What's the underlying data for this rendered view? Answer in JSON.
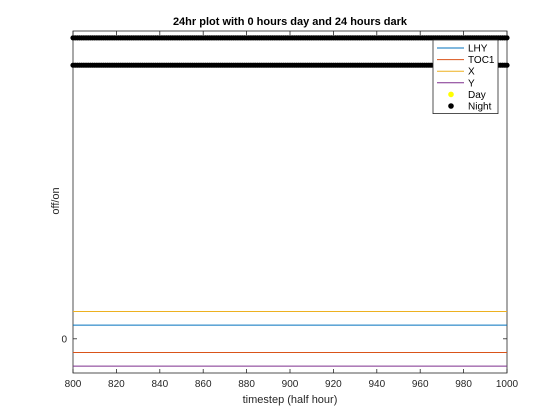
{
  "chart_data": {
    "type": "line",
    "title": "24hr plot with 0 hours day and 24 hours dark",
    "xlabel": "timestep (half hour)",
    "ylabel": "off/on",
    "xlim": [
      800,
      1000
    ],
    "ylim": [
      -0.25,
      2.25
    ],
    "x_ticks": [
      800,
      820,
      840,
      860,
      880,
      900,
      920,
      940,
      960,
      980,
      1000
    ],
    "y_ticks": [
      0
    ],
    "grid": false,
    "legend_position": "top-right",
    "series": [
      {
        "name": "LHY",
        "color": "#0072bd",
        "kind": "line",
        "x": [
          800,
          1000
        ],
        "y": [
          0.1,
          0.1
        ]
      },
      {
        "name": "TOC1",
        "color": "#d95319",
        "kind": "line",
        "x": [
          800,
          1000
        ],
        "y": [
          -0.1,
          -0.1
        ]
      },
      {
        "name": "X",
        "color": "#edb120",
        "kind": "line",
        "x": [
          800,
          1000
        ],
        "y": [
          0.2,
          0.2
        ]
      },
      {
        "name": "Y",
        "color": "#7e2f8e",
        "kind": "line",
        "x": [
          800,
          1000
        ],
        "y": [
          -0.2,
          -0.2
        ]
      },
      {
        "name": "Day",
        "color": "#ffff00",
        "kind": "markers",
        "x": [],
        "y": []
      },
      {
        "name": "Night",
        "color": "#000000",
        "kind": "markers",
        "x_range": [
          800,
          1000
        ],
        "x_step": 1,
        "y_levels": [
          2.2,
          2.0
        ]
      }
    ]
  }
}
